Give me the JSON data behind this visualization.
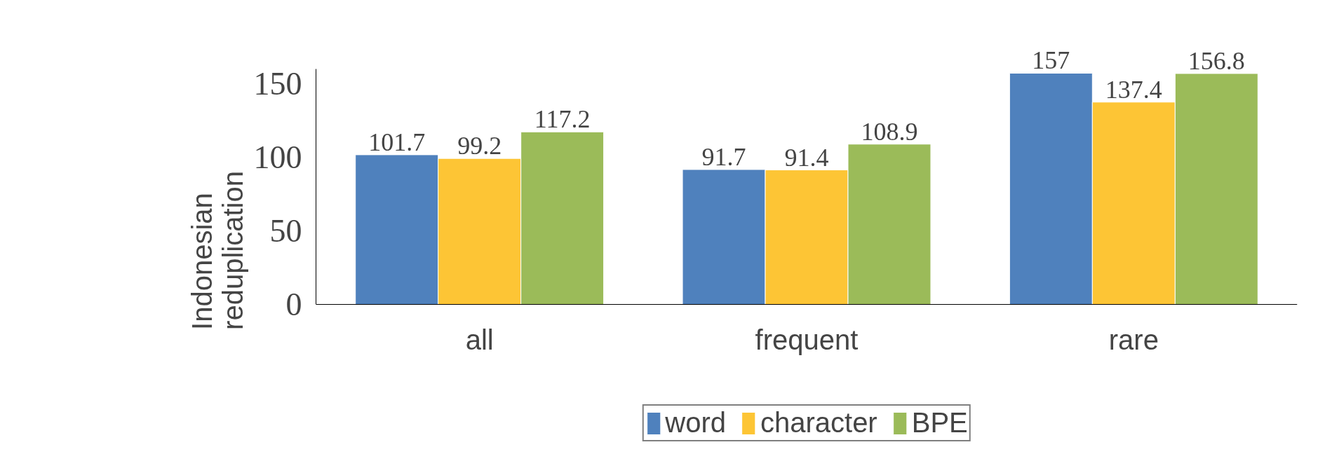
{
  "chart_data": {
    "type": "bar",
    "ylabel": "Indonesian reduplication",
    "categories": [
      "all",
      "frequent",
      "rare"
    ],
    "series": [
      {
        "name": "word",
        "color": "#4f81bd",
        "values": [
          101.7,
          91.7,
          157
        ]
      },
      {
        "name": "character",
        "color": "#fdc535",
        "values": [
          99.2,
          91.4,
          137.4
        ]
      },
      {
        "name": "BPE",
        "color": "#9bbb59",
        "values": [
          117.2,
          108.9,
          156.8
        ]
      }
    ],
    "ylim": [
      0,
      160
    ],
    "yticks": [
      0,
      50,
      100,
      150
    ],
    "grid": false,
    "legend": "bottom",
    "data_labels": true
  }
}
